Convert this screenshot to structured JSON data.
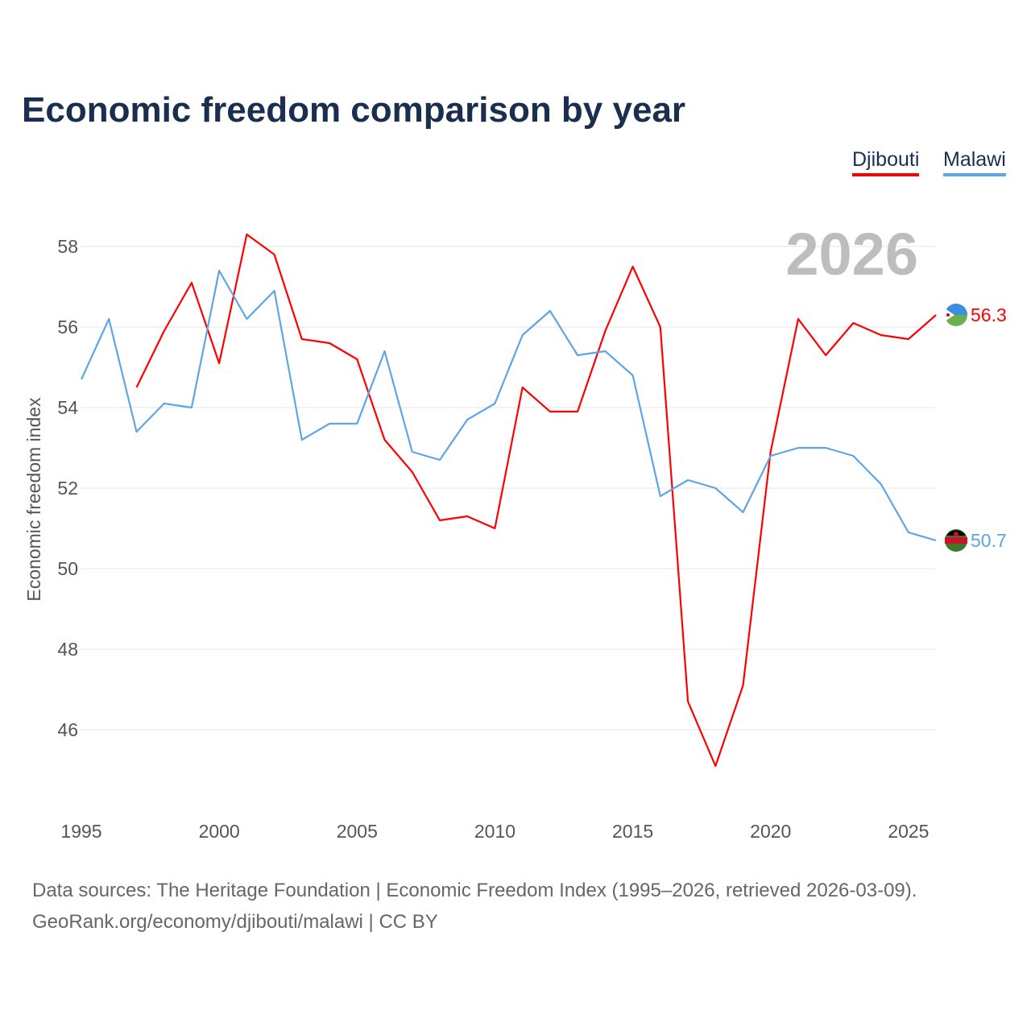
{
  "title": "Economic freedom comparison by year",
  "legend": [
    {
      "name": "Djibouti",
      "color": "#ff0000"
    },
    {
      "name": "Malawi",
      "color": "#5ea5e8"
    }
  ],
  "year_label": "2026",
  "footer": {
    "line1": "Data sources: The Heritage Foundation | Economic Freedom Index (1995–2026, retrieved 2026-03-09).",
    "line2": "GeoRank.org/economy/djibouti/malawi | CC BY"
  },
  "chart_data": {
    "type": "line",
    "ylabel": "Economic freedom index",
    "xlabel": "",
    "xlim": [
      1995,
      2026
    ],
    "ylim": [
      44,
      59
    ],
    "xticks": [
      1995,
      2000,
      2005,
      2010,
      2015,
      2020,
      2025
    ],
    "yticks": [
      46,
      48,
      50,
      52,
      54,
      56,
      58
    ],
    "grid": true,
    "legend_position": "top-right",
    "series": [
      {
        "name": "Djibouti",
        "color": "#ff0000",
        "end_label": "56.3",
        "x": [
          1997,
          1998,
          1999,
          2000,
          2001,
          2002,
          2003,
          2004,
          2005,
          2006,
          2007,
          2008,
          2009,
          2010,
          2011,
          2012,
          2013,
          2014,
          2015,
          2016,
          2017,
          2018,
          2019,
          2020,
          2021,
          2022,
          2023,
          2024,
          2025,
          2026
        ],
        "values": [
          54.5,
          55.9,
          57.1,
          55.1,
          58.3,
          57.8,
          55.7,
          55.6,
          55.2,
          53.2,
          52.4,
          51.2,
          51.3,
          51.0,
          54.5,
          53.9,
          53.9,
          55.9,
          57.5,
          56.0,
          46.7,
          45.1,
          47.1,
          52.9,
          56.2,
          55.3,
          56.1,
          55.8,
          55.7,
          56.3
        ]
      },
      {
        "name": "Malawi",
        "color": "#5ea5e8",
        "end_label": "50.7",
        "x": [
          1995,
          1996,
          1997,
          1998,
          1999,
          2000,
          2001,
          2002,
          2003,
          2004,
          2005,
          2006,
          2007,
          2008,
          2009,
          2010,
          2011,
          2012,
          2013,
          2014,
          2015,
          2016,
          2017,
          2018,
          2019,
          2020,
          2021,
          2022,
          2023,
          2024,
          2025,
          2026
        ],
        "values": [
          54.7,
          56.2,
          53.4,
          54.1,
          54.0,
          57.4,
          56.2,
          56.9,
          53.2,
          53.6,
          53.6,
          55.4,
          52.9,
          52.7,
          53.7,
          54.1,
          55.8,
          56.4,
          55.3,
          55.4,
          54.8,
          51.8,
          52.2,
          52.0,
          51.4,
          52.8,
          53.0,
          53.0,
          52.8,
          52.1,
          50.9,
          50.7
        ]
      }
    ]
  }
}
